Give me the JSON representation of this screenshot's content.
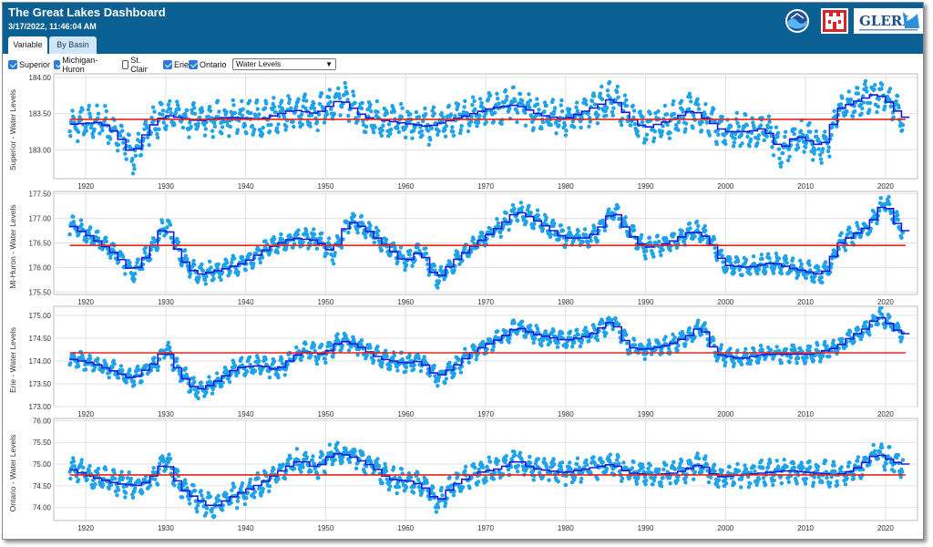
{
  "header": {
    "title": "The Great Lakes Dashboard",
    "timestamp": "3/17/2022, 11:46:04 AM",
    "logo_glerl": "GLERL"
  },
  "tabs": [
    {
      "label": "Variable",
      "active": true
    },
    {
      "label": "By Basin",
      "active": false
    }
  ],
  "controls": {
    "checkboxes": [
      {
        "label": "Superior",
        "checked": true
      },
      {
        "label": "Michigan-Huron",
        "checked": true
      },
      {
        "label": "St. Clair",
        "checked": false
      },
      {
        "label": "Erie",
        "checked": true
      },
      {
        "label": "Ontario",
        "checked": true
      }
    ],
    "variable_selected": "Water Levels"
  },
  "colors": {
    "header": "#0a5f93",
    "points": "#1ea3ea",
    "annual_step": "#1a1adb",
    "average_line": "#e8231c",
    "grid": "#e2e2e2"
  },
  "chart_data": [
    {
      "type": "scatter",
      "ylabel": "Superior - Water Levels",
      "xlim": [
        1916,
        2024
      ],
      "ylim": [
        182.6,
        184.05
      ],
      "yticks": [
        "184.00",
        "183.50",
        "183.00"
      ],
      "ytick_values": [
        184.0,
        183.5,
        183.0
      ],
      "xticks": [
        "1920",
        "1930",
        "1940",
        "1950",
        "1960",
        "1970",
        "1980",
        "1990",
        "2000",
        "2010",
        "2020"
      ],
      "xtick_values": [
        1920,
        1930,
        1940,
        1950,
        1960,
        1970,
        1980,
        1990,
        2000,
        2010,
        2020
      ],
      "long_term_average": 183.42,
      "points_spread": 0.17,
      "annual_trend": [
        [
          1918,
          183.35
        ],
        [
          1922,
          183.38
        ],
        [
          1924,
          183.22
        ],
        [
          1926,
          182.92
        ],
        [
          1928,
          183.3
        ],
        [
          1930,
          183.48
        ],
        [
          1934,
          183.4
        ],
        [
          1938,
          183.45
        ],
        [
          1942,
          183.42
        ],
        [
          1946,
          183.55
        ],
        [
          1949,
          183.5
        ],
        [
          1952,
          183.7
        ],
        [
          1955,
          183.45
        ],
        [
          1959,
          183.38
        ],
        [
          1963,
          183.32
        ],
        [
          1967,
          183.45
        ],
        [
          1971,
          183.58
        ],
        [
          1974,
          183.62
        ],
        [
          1977,
          183.48
        ],
        [
          1980,
          183.42
        ],
        [
          1984,
          183.6
        ],
        [
          1986,
          183.72
        ],
        [
          1988,
          183.45
        ],
        [
          1990,
          183.3
        ],
        [
          1993,
          183.4
        ],
        [
          1996,
          183.55
        ],
        [
          1998,
          183.4
        ],
        [
          2000,
          183.25
        ],
        [
          2003,
          183.25
        ],
        [
          2005,
          183.3
        ],
        [
          2007,
          183.0
        ],
        [
          2009,
          183.2
        ],
        [
          2012,
          183.05
        ],
        [
          2013,
          183.15
        ],
        [
          2014,
          183.55
        ],
        [
          2016,
          183.65
        ],
        [
          2019,
          183.78
        ],
        [
          2021,
          183.62
        ],
        [
          2022,
          183.45
        ]
      ]
    },
    {
      "type": "scatter",
      "ylabel": "MI-Huron - Water Levels",
      "xlim": [
        1916,
        2024
      ],
      "ylim": [
        175.45,
        177.55
      ],
      "yticks": [
        "177.50",
        "177.00",
        "176.50",
        "176.00",
        "175.50"
      ],
      "ytick_values": [
        177.5,
        177.0,
        176.5,
        176.0,
        175.5
      ],
      "xticks": [
        "1920",
        "1930",
        "1940",
        "1950",
        "1960",
        "1970",
        "1980",
        "1990",
        "2000",
        "2010",
        "2020"
      ],
      "xtick_values": [
        1920,
        1930,
        1940,
        1950,
        1960,
        1970,
        1980,
        1990,
        2000,
        2010,
        2020
      ],
      "long_term_average": 176.45,
      "points_spread": 0.15,
      "annual_trend": [
        [
          1918,
          176.88
        ],
        [
          1921,
          176.6
        ],
        [
          1924,
          176.25
        ],
        [
          1926,
          175.9
        ],
        [
          1928,
          176.3
        ],
        [
          1930,
          176.9
        ],
        [
          1932,
          176.2
        ],
        [
          1934,
          175.85
        ],
        [
          1937,
          175.95
        ],
        [
          1940,
          176.1
        ],
        [
          1943,
          176.4
        ],
        [
          1946,
          176.6
        ],
        [
          1949,
          176.55
        ],
        [
          1951,
          176.3
        ],
        [
          1953,
          176.95
        ],
        [
          1955,
          176.8
        ],
        [
          1958,
          176.4
        ],
        [
          1960,
          176.1
        ],
        [
          1962,
          176.35
        ],
        [
          1964,
          175.75
        ],
        [
          1966,
          176.1
        ],
        [
          1969,
          176.5
        ],
        [
          1972,
          176.85
        ],
        [
          1974,
          177.15
        ],
        [
          1976,
          177.0
        ],
        [
          1978,
          176.8
        ],
        [
          1980,
          176.6
        ],
        [
          1983,
          176.6
        ],
        [
          1985,
          176.9
        ],
        [
          1986,
          177.2
        ],
        [
          1988,
          176.7
        ],
        [
          1990,
          176.4
        ],
        [
          1993,
          176.5
        ],
        [
          1996,
          176.75
        ],
        [
          1998,
          176.6
        ],
        [
          2000,
          176.05
        ],
        [
          2003,
          176.0
        ],
        [
          2006,
          176.1
        ],
        [
          2008,
          176.0
        ],
        [
          2012,
          175.85
        ],
        [
          2013,
          176.0
        ],
        [
          2014,
          176.45
        ],
        [
          2016,
          176.65
        ],
        [
          2018,
          176.85
        ],
        [
          2020,
          177.35
        ],
        [
          2021,
          177.05
        ],
        [
          2022,
          176.75
        ]
      ]
    },
    {
      "type": "scatter",
      "ylabel": "Erie - Water Levels",
      "xlim": [
        1916,
        2024
      ],
      "ylim": [
        173.0,
        175.2
      ],
      "yticks": [
        "175.00",
        "174.50",
        "174.00",
        "173.50",
        "173.00"
      ],
      "ytick_values": [
        175.0,
        174.5,
        174.0,
        173.5,
        173.0
      ],
      "xticks": [
        "1920",
        "1930",
        "1940",
        "1950",
        "1960",
        "1970",
        "1980",
        "1990",
        "2000",
        "2010",
        "2020"
      ],
      "xtick_values": [
        1920,
        1930,
        1940,
        1950,
        1960,
        1970,
        1980,
        1990,
        2000,
        2010,
        2020
      ],
      "long_term_average": 174.18,
      "points_spread": 0.15,
      "annual_trend": [
        [
          1918,
          174.05
        ],
        [
          1921,
          173.95
        ],
        [
          1924,
          173.75
        ],
        [
          1926,
          173.6
        ],
        [
          1929,
          174.0
        ],
        [
          1930,
          174.3
        ],
        [
          1932,
          173.7
        ],
        [
          1934,
          173.35
        ],
        [
          1936,
          173.5
        ],
        [
          1939,
          173.85
        ],
        [
          1942,
          173.9
        ],
        [
          1944,
          173.8
        ],
        [
          1947,
          174.2
        ],
        [
          1950,
          174.15
        ],
        [
          1952,
          174.45
        ],
        [
          1954,
          174.35
        ],
        [
          1957,
          174.05
        ],
        [
          1960,
          173.95
        ],
        [
          1962,
          174.0
        ],
        [
          1964,
          173.65
        ],
        [
          1966,
          173.85
        ],
        [
          1969,
          174.25
        ],
        [
          1972,
          174.5
        ],
        [
          1974,
          174.75
        ],
        [
          1976,
          174.6
        ],
        [
          1980,
          174.45
        ],
        [
          1983,
          174.55
        ],
        [
          1986,
          174.9
        ],
        [
          1988,
          174.3
        ],
        [
          1990,
          174.25
        ],
        [
          1993,
          174.35
        ],
        [
          1996,
          174.6
        ],
        [
          1997,
          174.8
        ],
        [
          1999,
          174.15
        ],
        [
          2002,
          174.05
        ],
        [
          2005,
          174.15
        ],
        [
          2008,
          174.15
        ],
        [
          2011,
          174.15
        ],
        [
          2014,
          174.3
        ],
        [
          2016,
          174.55
        ],
        [
          2018,
          174.75
        ],
        [
          2019,
          175.0
        ],
        [
          2020,
          174.9
        ],
        [
          2022,
          174.6
        ]
      ]
    },
    {
      "type": "scatter",
      "ylabel": "Ontario - Water Levels",
      "xlim": [
        1916,
        2024
      ],
      "ylim": [
        73.7,
        76.05
      ],
      "yticks": [
        "76.00",
        "75.50",
        "75.00",
        "74.50",
        "74.00"
      ],
      "ytick_values": [
        76.0,
        75.5,
        75.0,
        74.5,
        74.0
      ],
      "xticks": [
        "1920",
        "1930",
        "1940",
        "1950",
        "1960",
        "1970",
        "1980",
        "1990",
        "2000",
        "2010",
        "2020"
      ],
      "xtick_values": [
        1920,
        1930,
        1940,
        1950,
        1960,
        1970,
        1980,
        1990,
        2000,
        2010,
        2020
      ],
      "long_term_average": 74.75,
      "points_spread": 0.2,
      "annual_trend": [
        [
          1918,
          74.9
        ],
        [
          1921,
          74.7
        ],
        [
          1924,
          74.55
        ],
        [
          1927,
          74.5
        ],
        [
          1929,
          74.8
        ],
        [
          1930,
          75.1
        ],
        [
          1932,
          74.45
        ],
        [
          1934,
          74.2
        ],
        [
          1936,
          74.0
        ],
        [
          1939,
          74.3
        ],
        [
          1942,
          74.55
        ],
        [
          1945,
          74.9
        ],
        [
          1947,
          75.1
        ],
        [
          1949,
          74.9
        ],
        [
          1951,
          75.25
        ],
        [
          1953,
          75.2
        ],
        [
          1956,
          74.95
        ],
        [
          1958,
          74.65
        ],
        [
          1961,
          74.6
        ],
        [
          1963,
          74.4
        ],
        [
          1964,
          74.1
        ],
        [
          1966,
          74.5
        ],
        [
          1969,
          74.8
        ],
        [
          1972,
          74.9
        ],
        [
          1974,
          75.1
        ],
        [
          1976,
          74.9
        ],
        [
          1980,
          74.8
        ],
        [
          1983,
          74.9
        ],
        [
          1986,
          75.0
        ],
        [
          1988,
          74.8
        ],
        [
          1991,
          74.75
        ],
        [
          1994,
          74.8
        ],
        [
          1997,
          75.0
        ],
        [
          1999,
          74.7
        ],
        [
          2002,
          74.75
        ],
        [
          2005,
          74.8
        ],
        [
          2008,
          74.85
        ],
        [
          2011,
          74.8
        ],
        [
          2014,
          74.75
        ],
        [
          2016,
          74.85
        ],
        [
          2018,
          75.1
        ],
        [
          2019,
          75.25
        ],
        [
          2020,
          75.15
        ],
        [
          2022,
          75.0
        ]
      ]
    }
  ]
}
